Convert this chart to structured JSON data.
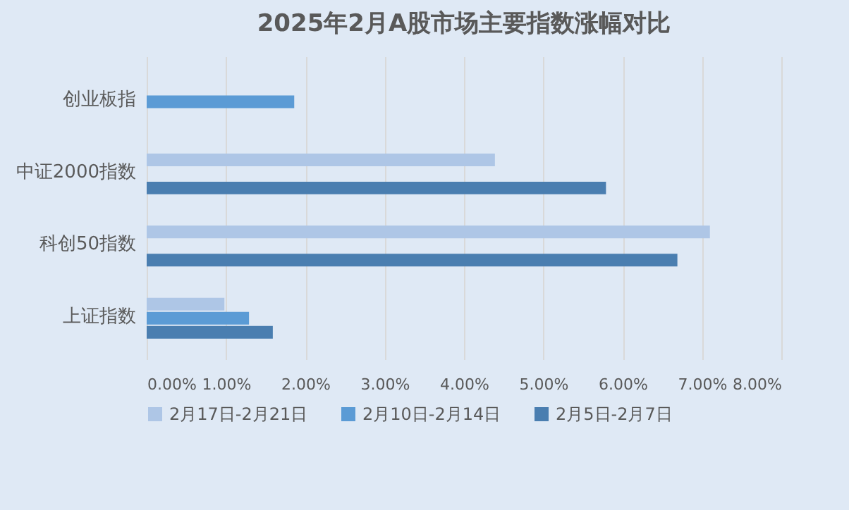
{
  "chart_data": {
    "type": "bar",
    "orientation": "horizontal",
    "title": "2025年2月A股市场主要指数涨幅对比",
    "categories": [
      "创业板指",
      "中证2000指数",
      "科创50指数",
      "上证指数"
    ],
    "series": [
      {
        "name": "2月17日-2月21日",
        "color": "#aec6e6",
        "values": [
          null,
          4.39,
          7.1,
          0.98
        ]
      },
      {
        "name": "2月10日-2月14日",
        "color": "#5b9bd5",
        "values": [
          1.86,
          null,
          null,
          1.29
        ]
      },
      {
        "name": "2月5日-2月7日",
        "color": "#4a7eb0",
        "values": [
          null,
          5.79,
          6.69,
          1.59
        ]
      }
    ],
    "xlim": [
      0,
      8
    ],
    "xticks": [
      {
        "value": 0,
        "label": "0.00%"
      },
      {
        "value": 1,
        "label": "1.00%"
      },
      {
        "value": 2,
        "label": "2.00%"
      },
      {
        "value": 3,
        "label": "3.00%"
      },
      {
        "value": 4,
        "label": "4.00%"
      },
      {
        "value": 5,
        "label": "5.00%"
      },
      {
        "value": 6,
        "label": "6.00%"
      },
      {
        "value": 7,
        "label": "7.00%"
      },
      {
        "value": 8,
        "label": "8.00%"
      }
    ],
    "grid": "x",
    "legend": "bottom"
  }
}
